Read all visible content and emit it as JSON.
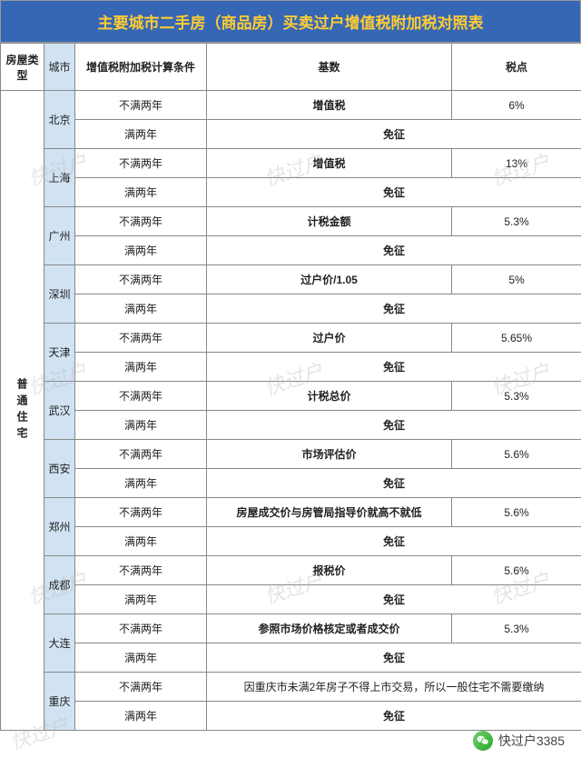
{
  "title": "主要城市二手房（商品房）买卖过户增值税附加税对照表",
  "headers": {
    "type": "房屋类型",
    "city": "城市",
    "condition": "增值税附加税计算条件",
    "base": "基数",
    "rate": "税点"
  },
  "type_label": "普通住宅",
  "cond_under": "不满两年",
  "cond_over": "满两年",
  "exempt": "免征",
  "cities": [
    {
      "name": "北京",
      "base": "增值税",
      "rate": "6%"
    },
    {
      "name": "上海",
      "base": "增值税",
      "rate": "13%"
    },
    {
      "name": "广州",
      "base": "计税金额",
      "rate": "5.3%"
    },
    {
      "name": "深圳",
      "base": "过户价/1.05",
      "rate": "5%"
    },
    {
      "name": "天津",
      "base": "过户价",
      "rate": "5.65%"
    },
    {
      "name": "武汉",
      "base": "计税总价",
      "rate": "5.3%"
    },
    {
      "name": "西安",
      "base": "市场评估价",
      "rate": "5.6%"
    },
    {
      "name": "郑州",
      "base": "房屋成交价与房管局指导价就高不就低",
      "rate": "5.6%"
    },
    {
      "name": "成都",
      "base": "报税价",
      "rate": "5.6%"
    },
    {
      "name": "大连",
      "base": "参照市场价格核定或者成交价",
      "rate": "5.3%"
    },
    {
      "name": "重庆",
      "base": "因重庆市未满2年房子不得上市交易，所以一般住宅不需要缴纳",
      "rate": "",
      "merged": true
    }
  ],
  "watermark_text": "快过户",
  "footer_text": "快过户3385",
  "widths": {
    "type": 48,
    "city": 34,
    "cond": 145,
    "base": 270,
    "rate": 143
  },
  "colors": {
    "title_bg": "#3667b5",
    "title_fg": "#ffcc33",
    "city_bg": "#d1e3f3",
    "border": "#888888",
    "text": "#222222",
    "watermark": "rgba(180,180,180,0.35)"
  }
}
